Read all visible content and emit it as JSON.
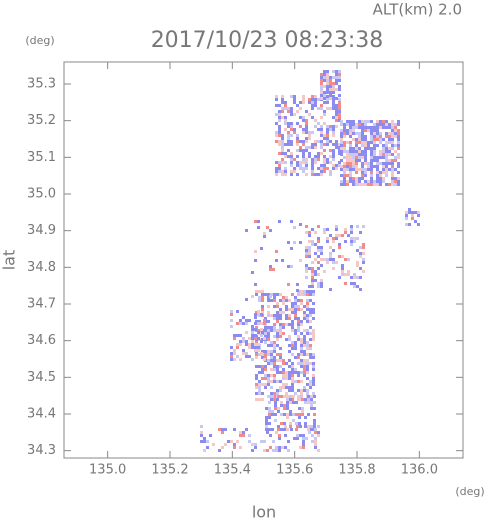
{
  "chart_data": {
    "type": "map",
    "title": "2017/10/23 08:23:38",
    "altitude_label": "ALT(km) 2.0",
    "y_unit": "(deg)",
    "x_unit": "(deg)",
    "xlabel": "lon",
    "ylabel": "lat",
    "xlim": [
      134.86,
      136.14
    ],
    "ylim": [
      34.28,
      35.36
    ],
    "xticks": [
      {
        "value": 135,
        "label": "135.0"
      },
      135.2,
      135.4,
      135.6,
      135.8,
      {
        "value": 136,
        "label": "136.0"
      }
    ],
    "yticks": [
      34.3,
      34.4,
      34.5,
      34.6,
      34.7,
      34.8,
      34.9,
      {
        "value": 35,
        "label": "35.0"
      },
      35.1,
      35.2,
      35.3
    ]
  }
}
